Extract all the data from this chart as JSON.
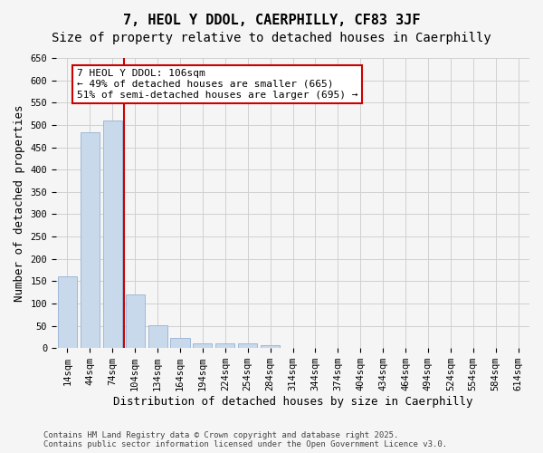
{
  "title": "7, HEOL Y DDOL, CAERPHILLY, CF83 3JF",
  "subtitle": "Size of property relative to detached houses in Caerphilly",
  "xlabel": "Distribution of detached houses by size in Caerphilly",
  "ylabel": "Number of detached properties",
  "bar_values": [
    160,
    483,
    510,
    120,
    52,
    22,
    11,
    10,
    10,
    6,
    0,
    0,
    0,
    0,
    0,
    0,
    0,
    0,
    0,
    0,
    0
  ],
  "categories": [
    "14sqm",
    "44sqm",
    "74sqm",
    "104sqm",
    "134sqm",
    "164sqm",
    "194sqm",
    "224sqm",
    "254sqm",
    "284sqm",
    "314sqm",
    "344sqm",
    "374sqm",
    "404sqm",
    "434sqm",
    "464sqm",
    "494sqm",
    "524sqm",
    "554sqm",
    "584sqm",
    "614sqm"
  ],
  "bar_color": "#c9d9ec",
  "bar_edge_color": "#a0b8d8",
  "annotation_text": "7 HEOL Y DDOL: 106sqm\n← 49% of detached houses are smaller (665)\n51% of semi-detached houses are larger (695) →",
  "annotation_box_color": "#ffffff",
  "annotation_border_color": "#cc0000",
  "vline_color": "#cc0000",
  "vline_x": 2.5,
  "ylim": [
    0,
    650
  ],
  "yticks": [
    0,
    50,
    100,
    150,
    200,
    250,
    300,
    350,
    400,
    450,
    500,
    550,
    600,
    650
  ],
  "grid_color": "#d0d0d0",
  "background_color": "#f5f5f5",
  "footer_text": "Contains HM Land Registry data © Crown copyright and database right 2025.\nContains public sector information licensed under the Open Government Licence v3.0.",
  "title_fontsize": 11,
  "subtitle_fontsize": 10,
  "xlabel_fontsize": 9,
  "ylabel_fontsize": 9,
  "tick_fontsize": 7.5,
  "annotation_fontsize": 8,
  "footer_fontsize": 6.5
}
